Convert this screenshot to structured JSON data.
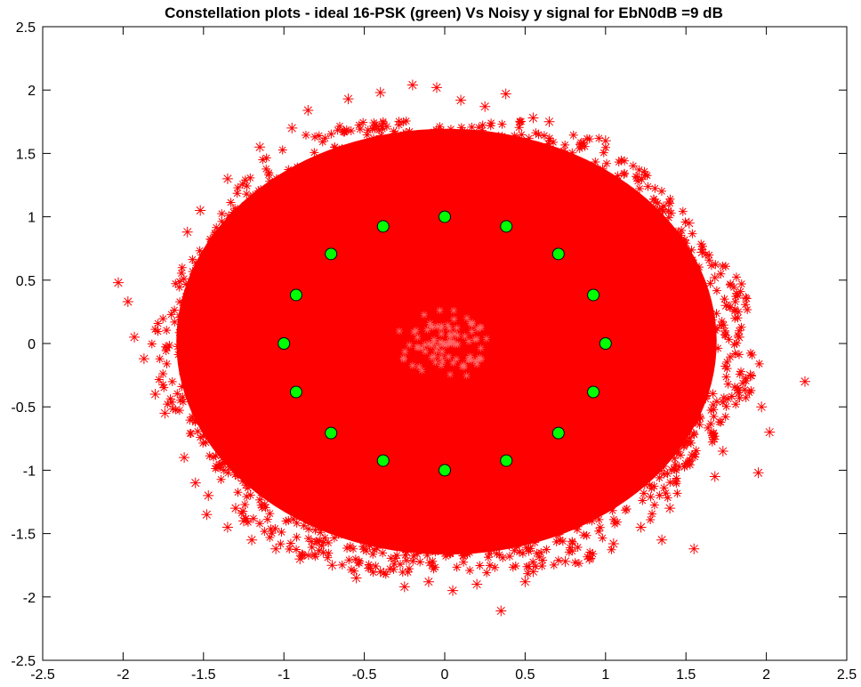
{
  "chart_data": {
    "type": "scatter",
    "title": "Constellation plots - ideal 16-PSK (green) Vs Noisy y signal for EbN0dB =9 dB",
    "xlabel": "",
    "ylabel": "",
    "xlim": [
      -2.5,
      2.5
    ],
    "ylim": [
      -2.5,
      2.5
    ],
    "grid": false,
    "legend": "none",
    "x_ticks": [
      "-2.5",
      "-2",
      "-1.5",
      "-1",
      "-0.5",
      "0",
      "0.5",
      "1",
      "1.5",
      "2",
      "2.5"
    ],
    "y_ticks": [
      "2.5",
      "2",
      "1.5",
      "1",
      "0.5",
      "0",
      "-0.5",
      "-1",
      "-1.5",
      "-2",
      "-2.5"
    ],
    "series": [
      {
        "color": "#ff0000",
        "marker": "asterisk",
        "distribution": "noisy 16-PSK symbols on unit circle, Gaussian noise, dense cloud radius ~1.6, outliers to ~2.2",
        "x": [
          -2.03,
          -1.97,
          -1.93,
          -1.87,
          -1.8,
          -1.74,
          -1.62,
          -1.55,
          -1.47,
          -1.3,
          -1.25,
          -1.6,
          -1.52,
          -1.35,
          -1.15,
          -0.95,
          -0.85,
          -0.6,
          -0.4,
          -0.2,
          -0.05,
          0.1,
          0.25,
          0.38,
          0.55,
          0.65,
          0.85,
          1.0,
          1.15,
          1.3,
          1.45,
          1.52,
          1.6,
          1.68,
          1.75,
          1.83,
          1.9,
          1.97,
          2.02,
          2.24,
          1.95,
          1.73,
          1.68,
          1.55,
          1.4,
          1.35,
          1.22,
          1.05,
          0.9,
          0.75,
          0.55,
          0.5,
          0.35,
          0.2,
          0.05,
          -0.1,
          -0.25,
          -0.4,
          -0.55,
          -0.7,
          -0.9,
          -1.05,
          -1.2,
          -1.35,
          -1.48
        ],
        "y": [
          0.48,
          0.33,
          0.05,
          -0.12,
          -0.4,
          -0.55,
          -0.9,
          -1.1,
          -1.2,
          -1.3,
          -1.4,
          0.88,
          1.05,
          1.3,
          1.55,
          1.7,
          1.84,
          1.93,
          1.98,
          2.04,
          2.02,
          1.92,
          1.87,
          1.97,
          1.78,
          1.75,
          1.58,
          1.6,
          1.2,
          1.05,
          0.87,
          0.95,
          0.72,
          0.52,
          0.3,
          0.05,
          -0.25,
          -0.5,
          -0.7,
          -0.3,
          -1.02,
          -0.85,
          -1.05,
          -1.62,
          -1.3,
          -1.55,
          -1.45,
          -1.58,
          -1.7,
          -1.72,
          -1.8,
          -1.88,
          -2.11,
          -1.9,
          -1.95,
          -1.88,
          -1.92,
          -1.8,
          -1.85,
          -1.75,
          -1.7,
          -1.62,
          -1.55,
          -1.45,
          -1.35
        ]
      },
      {
        "color": "#00ff00",
        "marker": "circle",
        "x": [
          1.0,
          0.924,
          0.707,
          0.383,
          0.0,
          -0.383,
          -0.707,
          -0.924,
          -1.0,
          -0.924,
          -0.707,
          -0.383,
          0.0,
          0.383,
          0.707,
          0.924
        ],
        "y": [
          0.0,
          0.383,
          0.707,
          0.924,
          1.0,
          0.924,
          0.707,
          0.383,
          0.0,
          -0.383,
          -0.707,
          -0.924,
          -1.0,
          -0.924,
          -0.707,
          -0.383
        ]
      }
    ]
  }
}
